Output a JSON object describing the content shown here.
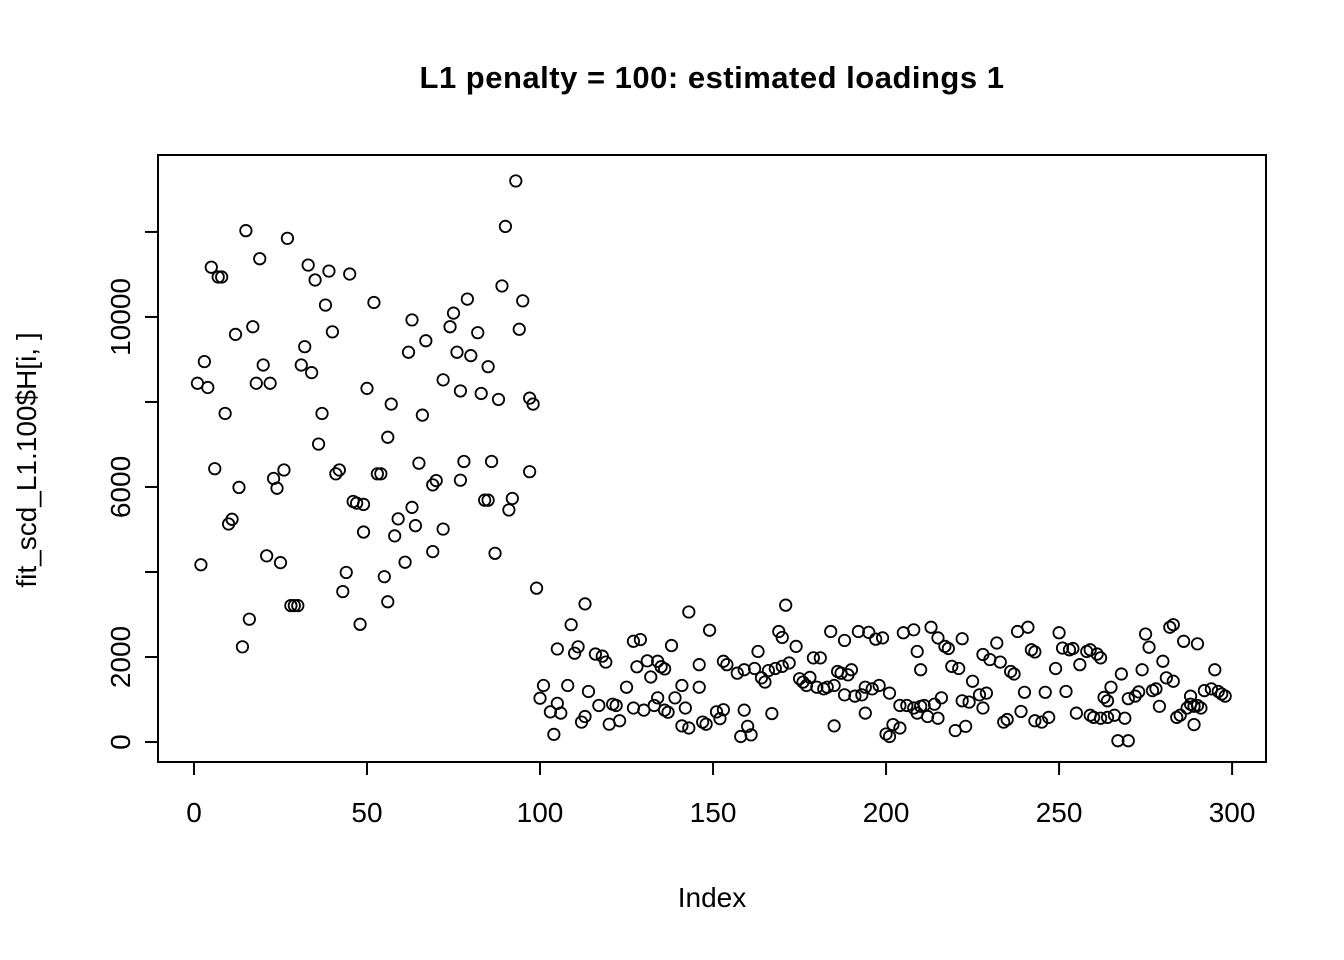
{
  "title": "L1 penalty = 100: estimated loadings 1",
  "chart_data": {
    "type": "scatter",
    "title": "L1 penalty = 100: estimated loadings 1",
    "xlabel": "Index",
    "ylabel": "fit_scd_L1.100$H[i, ]",
    "xlim": [
      -10.4,
      309.8
    ],
    "ylim": [
      -470,
      13810
    ],
    "grid": false,
    "legend": "none",
    "marker": "open-circle",
    "marker_color": "#000000",
    "background_color": "#ffffff",
    "x_ticks": [
      {
        "value": 0,
        "label": "0"
      },
      {
        "value": 50,
        "label": "50"
      },
      {
        "value": 100,
        "label": "100"
      },
      {
        "value": 150,
        "label": "150"
      },
      {
        "value": 200,
        "label": "200"
      },
      {
        "value": 250,
        "label": "250"
      },
      {
        "value": 300,
        "label": "300"
      }
    ],
    "y_ticks": [
      {
        "value": 0,
        "label": "0"
      },
      {
        "value": 2000,
        "label": "2000"
      },
      {
        "value": 4000,
        "label": ""
      },
      {
        "value": 6000,
        "label": "6000"
      },
      {
        "value": 8000,
        "label": ""
      },
      {
        "value": 10000,
        "label": "10000"
      },
      {
        "value": 12000,
        "label": ""
      }
    ],
    "points": [
      [
        1,
        8440
      ],
      [
        2,
        4170
      ],
      [
        3,
        8950
      ],
      [
        4,
        8340
      ],
      [
        5,
        11170
      ],
      [
        6,
        6430
      ],
      [
        7,
        10940
      ],
      [
        8,
        10940
      ],
      [
        9,
        7730
      ],
      [
        10,
        5130
      ],
      [
        11,
        5240
      ],
      [
        12,
        9590
      ],
      [
        13,
        5990
      ],
      [
        14,
        2240
      ],
      [
        15,
        12030
      ],
      [
        16,
        2890
      ],
      [
        17,
        9770
      ],
      [
        18,
        8440
      ],
      [
        19,
        11370
      ],
      [
        20,
        8870
      ],
      [
        21,
        4380
      ],
      [
        22,
        8440
      ],
      [
        23,
        6200
      ],
      [
        24,
        5970
      ],
      [
        25,
        4220
      ],
      [
        26,
        6400
      ],
      [
        27,
        11850
      ],
      [
        28,
        3210
      ],
      [
        29,
        3210
      ],
      [
        30,
        3210
      ],
      [
        31,
        8870
      ],
      [
        32,
        9300
      ],
      [
        33,
        11220
      ],
      [
        34,
        8690
      ],
      [
        35,
        10870
      ],
      [
        36,
        7010
      ],
      [
        37,
        7730
      ],
      [
        38,
        10280
      ],
      [
        39,
        11080
      ],
      [
        40,
        9650
      ],
      [
        41,
        6310
      ],
      [
        42,
        6400
      ],
      [
        43,
        3540
      ],
      [
        44,
        3990
      ],
      [
        45,
        11010
      ],
      [
        46,
        5660
      ],
      [
        47,
        5620
      ],
      [
        48,
        2770
      ],
      [
        49,
        5590
      ],
      [
        49,
        4940
      ],
      [
        50,
        8320
      ],
      [
        52,
        10340
      ],
      [
        53,
        6310
      ],
      [
        54,
        6310
      ],
      [
        55,
        3890
      ],
      [
        56,
        7170
      ],
      [
        56,
        3300
      ],
      [
        57,
        7950
      ],
      [
        58,
        4850
      ],
      [
        59,
        5250
      ],
      [
        61,
        4230
      ],
      [
        62,
        9170
      ],
      [
        63,
        9930
      ],
      [
        63,
        5520
      ],
      [
        64,
        5090
      ],
      [
        65,
        6560
      ],
      [
        66,
        7690
      ],
      [
        67,
        9440
      ],
      [
        69,
        6050
      ],
      [
        69,
        4480
      ],
      [
        70,
        6150
      ],
      [
        72,
        8520
      ],
      [
        72,
        5010
      ],
      [
        74,
        9770
      ],
      [
        75,
        10090
      ],
      [
        76,
        9170
      ],
      [
        77,
        8260
      ],
      [
        77,
        6160
      ],
      [
        78,
        6600
      ],
      [
        79,
        10420
      ],
      [
        80,
        9090
      ],
      [
        82,
        9630
      ],
      [
        83,
        8200
      ],
      [
        84,
        5690
      ],
      [
        85,
        8830
      ],
      [
        85,
        5690
      ],
      [
        86,
        6600
      ],
      [
        87,
        4440
      ],
      [
        88,
        8060
      ],
      [
        89,
        10730
      ],
      [
        90,
        12130
      ],
      [
        91,
        5460
      ],
      [
        92,
        5730
      ],
      [
        93,
        13200
      ],
      [
        94,
        9710
      ],
      [
        95,
        10380
      ],
      [
        97,
        8090
      ],
      [
        97,
        6360
      ],
      [
        98,
        7950
      ],
      [
        99,
        3620
      ],
      [
        100,
        1030
      ],
      [
        101,
        1330
      ],
      [
        103,
        710
      ],
      [
        104,
        180
      ],
      [
        105,
        910
      ],
      [
        105,
        2190
      ],
      [
        106,
        680
      ],
      [
        108,
        1330
      ],
      [
        109,
        2760
      ],
      [
        110,
        2090
      ],
      [
        111,
        2240
      ],
      [
        112,
        470
      ],
      [
        113,
        3250
      ],
      [
        113,
        600
      ],
      [
        114,
        1190
      ],
      [
        116,
        2070
      ],
      [
        117,
        860
      ],
      [
        118,
        2020
      ],
      [
        119,
        1880
      ],
      [
        120,
        420
      ],
      [
        121,
        890
      ],
      [
        122,
        860
      ],
      [
        123,
        500
      ],
      [
        125,
        1290
      ],
      [
        127,
        2370
      ],
      [
        127,
        800
      ],
      [
        128,
        1770
      ],
      [
        129,
        2410
      ],
      [
        130,
        750
      ],
      [
        131,
        1910
      ],
      [
        132,
        1530
      ],
      [
        133,
        860
      ],
      [
        134,
        1900
      ],
      [
        134,
        1040
      ],
      [
        135,
        1770
      ],
      [
        136,
        1720
      ],
      [
        136,
        750
      ],
      [
        137,
        700
      ],
      [
        138,
        2270
      ],
      [
        139,
        1040
      ],
      [
        141,
        1330
      ],
      [
        141,
        380
      ],
      [
        142,
        800
      ],
      [
        143,
        3060
      ],
      [
        143,
        330
      ],
      [
        146,
        1820
      ],
      [
        146,
        1290
      ],
      [
        147,
        470
      ],
      [
        148,
        420
      ],
      [
        149,
        2630
      ],
      [
        151,
        710
      ],
      [
        152,
        550
      ],
      [
        153,
        1900
      ],
      [
        153,
        760
      ],
      [
        154,
        1820
      ],
      [
        157,
        1620
      ],
      [
        158,
        130
      ],
      [
        159,
        1700
      ],
      [
        159,
        750
      ],
      [
        160,
        370
      ],
      [
        161,
        170
      ],
      [
        162,
        1730
      ],
      [
        163,
        2130
      ],
      [
        164,
        1510
      ],
      [
        165,
        1410
      ],
      [
        166,
        1680
      ],
      [
        167,
        670
      ],
      [
        168,
        1730
      ],
      [
        169,
        2600
      ],
      [
        170,
        2460
      ],
      [
        170,
        1780
      ],
      [
        171,
        3220
      ],
      [
        172,
        1860
      ],
      [
        174,
        2250
      ],
      [
        175,
        1490
      ],
      [
        176,
        1410
      ],
      [
        177,
        1330
      ],
      [
        178,
        1520
      ],
      [
        179,
        1980
      ],
      [
        180,
        1290
      ],
      [
        181,
        1980
      ],
      [
        182,
        1250
      ],
      [
        183,
        1290
      ],
      [
        184,
        2600
      ],
      [
        185,
        1330
      ],
      [
        185,
        380
      ],
      [
        186,
        1660
      ],
      [
        187,
        1620
      ],
      [
        188,
        2390
      ],
      [
        188,
        1110
      ],
      [
        189,
        1580
      ],
      [
        190,
        1700
      ],
      [
        191,
        1080
      ],
      [
        192,
        2600
      ],
      [
        193,
        1110
      ],
      [
        194,
        1290
      ],
      [
        194,
        680
      ],
      [
        195,
        2580
      ],
      [
        196,
        1250
      ],
      [
        197,
        2420
      ],
      [
        198,
        1330
      ],
      [
        199,
        2450
      ],
      [
        200,
        190
      ],
      [
        201,
        1150
      ],
      [
        201,
        130
      ],
      [
        202,
        410
      ],
      [
        204,
        860
      ],
      [
        204,
        330
      ],
      [
        205,
        2570
      ],
      [
        206,
        860
      ],
      [
        208,
        2640
      ],
      [
        208,
        800
      ],
      [
        209,
        2130
      ],
      [
        209,
        680
      ],
      [
        210,
        1700
      ],
      [
        210,
        840
      ],
      [
        211,
        860
      ],
      [
        212,
        600
      ],
      [
        213,
        2700
      ],
      [
        214,
        890
      ],
      [
        215,
        2450
      ],
      [
        215,
        560
      ],
      [
        216,
        1040
      ],
      [
        217,
        2250
      ],
      [
        218,
        2200
      ],
      [
        219,
        1780
      ],
      [
        220,
        270
      ],
      [
        221,
        1730
      ],
      [
        222,
        2430
      ],
      [
        222,
        970
      ],
      [
        223,
        370
      ],
      [
        224,
        940
      ],
      [
        225,
        1430
      ],
      [
        227,
        1110
      ],
      [
        228,
        2060
      ],
      [
        228,
        800
      ],
      [
        229,
        1150
      ],
      [
        230,
        1940
      ],
      [
        232,
        2330
      ],
      [
        233,
        1880
      ],
      [
        234,
        470
      ],
      [
        235,
        530
      ],
      [
        236,
        1660
      ],
      [
        237,
        1600
      ],
      [
        238,
        2600
      ],
      [
        239,
        720
      ],
      [
        240,
        1170
      ],
      [
        241,
        2700
      ],
      [
        242,
        2170
      ],
      [
        243,
        2120
      ],
      [
        243,
        500
      ],
      [
        245,
        470
      ],
      [
        246,
        1170
      ],
      [
        247,
        580
      ],
      [
        249,
        1730
      ],
      [
        250,
        2570
      ],
      [
        251,
        2210
      ],
      [
        252,
        1190
      ],
      [
        253,
        2170
      ],
      [
        254,
        2200
      ],
      [
        255,
        680
      ],
      [
        256,
        1820
      ],
      [
        258,
        2130
      ],
      [
        259,
        2170
      ],
      [
        259,
        630
      ],
      [
        260,
        580
      ],
      [
        261,
        2070
      ],
      [
        262,
        1980
      ],
      [
        262,
        560
      ],
      [
        263,
        1050
      ],
      [
        264,
        970
      ],
      [
        264,
        580
      ],
      [
        265,
        1290
      ],
      [
        266,
        630
      ],
      [
        267,
        30
      ],
      [
        268,
        1600
      ],
      [
        269,
        560
      ],
      [
        270,
        1020
      ],
      [
        270,
        30
      ],
      [
        272,
        1080
      ],
      [
        273,
        1180
      ],
      [
        274,
        1700
      ],
      [
        275,
        2540
      ],
      [
        276,
        2230
      ],
      [
        277,
        1210
      ],
      [
        278,
        1250
      ],
      [
        279,
        840
      ],
      [
        280,
        1900
      ],
      [
        281,
        1510
      ],
      [
        282,
        2700
      ],
      [
        283,
        2760
      ],
      [
        283,
        1430
      ],
      [
        284,
        580
      ],
      [
        285,
        630
      ],
      [
        286,
        2370
      ],
      [
        287,
        800
      ],
      [
        288,
        890
      ],
      [
        288,
        1080
      ],
      [
        289,
        840
      ],
      [
        289,
        410
      ],
      [
        290,
        2310
      ],
      [
        290,
        860
      ],
      [
        291,
        800
      ],
      [
        292,
        1210
      ],
      [
        294,
        1250
      ],
      [
        295,
        1700
      ],
      [
        296,
        1190
      ],
      [
        297,
        1130
      ],
      [
        298,
        1080
      ]
    ]
  }
}
